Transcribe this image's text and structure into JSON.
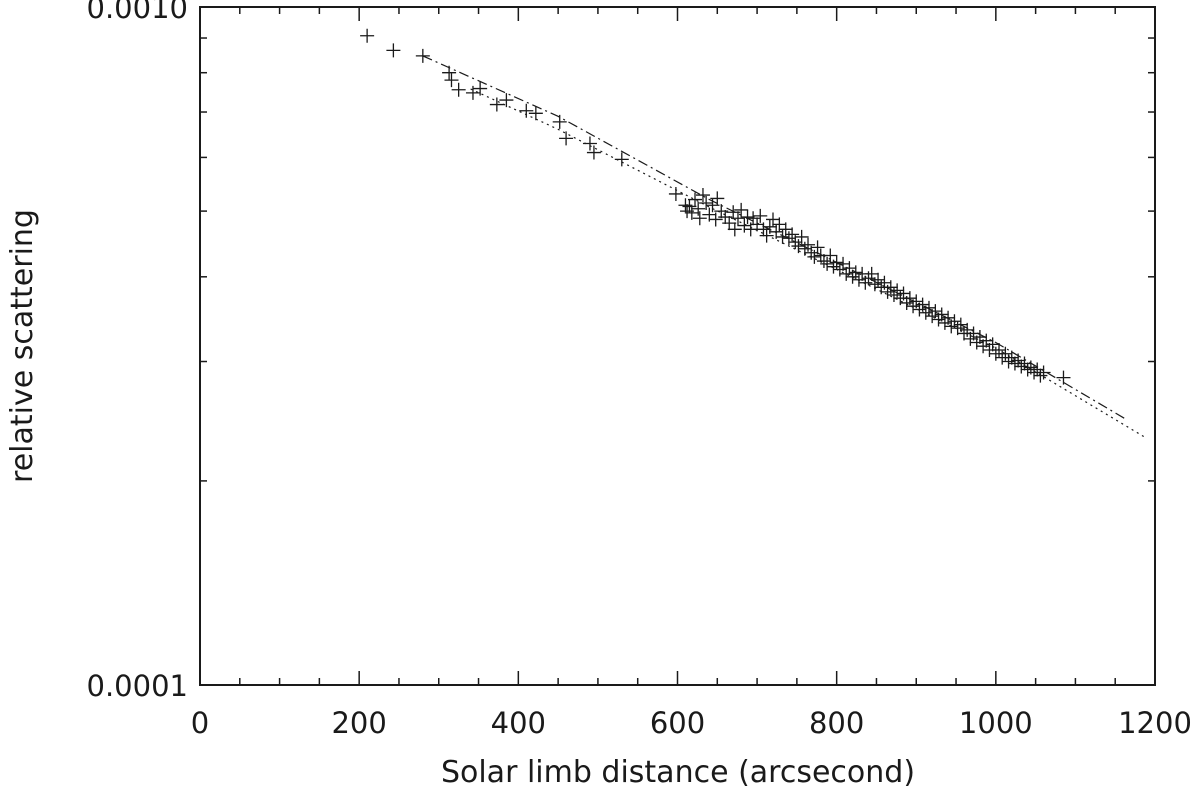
{
  "chart_data": {
    "type": "scatter",
    "title": "",
    "xlabel": "Solar limb distance (arcsecond)",
    "ylabel": "relative scattering",
    "xlim": [
      0,
      1200
    ],
    "ylim": [
      0.0001,
      0.001
    ],
    "y_scale": "log",
    "grid": false,
    "x_ticks": [
      {
        "value": 0,
        "label": "0"
      },
      {
        "value": 200,
        "label": "200"
      },
      {
        "value": 400,
        "label": "400"
      },
      {
        "value": 600,
        "label": "600"
      },
      {
        "value": 800,
        "label": "800"
      },
      {
        "value": 1000,
        "label": "1000"
      },
      {
        "value": 1200,
        "label": "1200"
      }
    ],
    "y_ticks": [
      {
        "value": 0.0001,
        "label": "0.0001"
      },
      {
        "value": 0.001,
        "label": "0.0010"
      }
    ],
    "series": [
      {
        "style": "plus-markers",
        "color": "#1a1a1a",
        "points": [
          [
            210,
            0.000907
          ],
          [
            243,
            0.000863
          ],
          [
            280,
            0.000847
          ],
          [
            313,
            0.0008
          ],
          [
            316,
            0.00078
          ],
          [
            325,
            0.000755
          ],
          [
            343,
            0.000747
          ],
          [
            352,
            0.000758
          ],
          [
            373,
            0.000718
          ],
          [
            385,
            0.000729
          ],
          [
            410,
            0.000703
          ],
          [
            422,
            0.000697
          ],
          [
            452,
            0.000677
          ],
          [
            460,
            0.00064
          ],
          [
            490,
            0.000629
          ],
          [
            495,
            0.00061
          ],
          [
            530,
            0.000596
          ],
          [
            598,
            0.00053
          ],
          [
            610,
            0.00051
          ],
          [
            612,
            0.0005
          ],
          [
            615,
            0.000508
          ],
          [
            618,
            0.000497
          ],
          [
            622,
            0.00052
          ],
          [
            626,
            0.000504
          ],
          [
            628,
            0.000488
          ],
          [
            632,
            0.000528
          ],
          [
            636,
            0.000514
          ],
          [
            640,
            0.000494
          ],
          [
            644,
            0.00051
          ],
          [
            648,
            0.000486
          ],
          [
            650,
            0.000522
          ],
          [
            655,
            0.0005
          ],
          [
            660,
            0.00049
          ],
          [
            665,
            0.00048
          ],
          [
            670,
            0.000498
          ],
          [
            672,
            0.00047
          ],
          [
            676,
            0.000488
          ],
          [
            680,
            0.000502
          ],
          [
            684,
            0.000476
          ],
          [
            688,
            0.00049
          ],
          [
            692,
            0.00047
          ],
          [
            695,
            0.000488
          ],
          [
            700,
            0.000478
          ],
          [
            704,
            0.000492
          ],
          [
            708,
            0.00047
          ],
          [
            712,
            0.00046
          ],
          [
            716,
            0.000474
          ],
          [
            720,
            0.000486
          ],
          [
            724,
            0.000466
          ],
          [
            728,
            0.000478
          ],
          [
            732,
            0.000458
          ],
          [
            736,
            0.00047
          ],
          [
            740,
            0.000456
          ],
          [
            744,
            0.000462
          ],
          [
            748,
            0.00045
          ],
          [
            752,
            0.000444
          ],
          [
            756,
            0.000458
          ],
          [
            760,
            0.00044
          ],
          [
            764,
            0.000446
          ],
          [
            768,
            0.000434
          ],
          [
            772,
            0.000428
          ],
          [
            776,
            0.000442
          ],
          [
            780,
            0.00043
          ],
          [
            784,
            0.000422
          ],
          [
            788,
            0.000418
          ],
          [
            792,
            0.00043
          ],
          [
            796,
            0.000414
          ],
          [
            800,
            0.00042
          ],
          [
            804,
            0.00041
          ],
          [
            808,
            0.000418
          ],
          [
            812,
            0.000404
          ],
          [
            816,
            0.000412
          ],
          [
            820,
            0.0004
          ],
          [
            824,
            0.000406
          ],
          [
            828,
            0.000396
          ],
          [
            832,
            0.000404
          ],
          [
            836,
            0.000392
          ],
          [
            840,
            0.000398
          ],
          [
            844,
            0.000404
          ],
          [
            848,
            0.00039
          ],
          [
            852,
            0.000396
          ],
          [
            856,
            0.000386
          ],
          [
            860,
            0.000392
          ],
          [
            864,
            0.00038
          ],
          [
            868,
            0.000386
          ],
          [
            872,
            0.000376
          ],
          [
            876,
            0.000382
          ],
          [
            880,
            0.000372
          ],
          [
            884,
            0.000378
          ],
          [
            888,
            0.000366
          ],
          [
            892,
            0.000372
          ],
          [
            896,
            0.000362
          ],
          [
            900,
            0.000368
          ],
          [
            904,
            0.000358
          ],
          [
            908,
            0.000364
          ],
          [
            912,
            0.000354
          ],
          [
            916,
            0.00036
          ],
          [
            920,
            0.00035
          ],
          [
            924,
            0.000356
          ],
          [
            928,
            0.000346
          ],
          [
            932,
            0.000352
          ],
          [
            936,
            0.000342
          ],
          [
            940,
            0.000348
          ],
          [
            944,
            0.000338
          ],
          [
            948,
            0.000344
          ],
          [
            952,
            0.000336
          ],
          [
            956,
            0.00034
          ],
          [
            960,
            0.00033
          ],
          [
            964,
            0.000334
          ],
          [
            968,
            0.000324
          ],
          [
            972,
            0.00033
          ],
          [
            976,
            0.00032
          ],
          [
            980,
            0.000326
          ],
          [
            984,
            0.000316
          ],
          [
            988,
            0.000322
          ],
          [
            992,
            0.000312
          ],
          [
            996,
            0.000318
          ],
          [
            1000,
            0.000308
          ],
          [
            1004,
            0.000312
          ],
          [
            1008,
            0.000304
          ],
          [
            1012,
            0.000308
          ],
          [
            1016,
            0.0003
          ],
          [
            1020,
            0.000304
          ],
          [
            1024,
            0.000298
          ],
          [
            1028,
            0.000301
          ],
          [
            1032,
            0.000295
          ],
          [
            1036,
            0.000298
          ],
          [
            1040,
            0.000292
          ],
          [
            1044,
            0.000294
          ],
          [
            1048,
            0.000289
          ],
          [
            1052,
            0.000292
          ],
          [
            1056,
            0.000286
          ],
          [
            1060,
            0.000289
          ],
          [
            1085,
            0.000284
          ]
        ]
      },
      {
        "style": "dashed",
        "color": "#1a1a1a",
        "points": [
          [
            280,
            0.000847
          ],
          [
            450,
            0.00069
          ],
          [
            640,
            0.00052
          ],
          [
            800,
            0.00042
          ],
          [
            1000,
            0.00032
          ],
          [
            1165,
            0.000246
          ]
        ]
      },
      {
        "style": "dotted",
        "color": "#1a1a1a",
        "points": [
          [
            340,
            0.000757
          ],
          [
            450,
            0.00066
          ],
          [
            640,
            0.000507
          ],
          [
            800,
            0.00041
          ],
          [
            1000,
            0.000314
          ],
          [
            1190,
            0.000231
          ]
        ]
      }
    ]
  }
}
